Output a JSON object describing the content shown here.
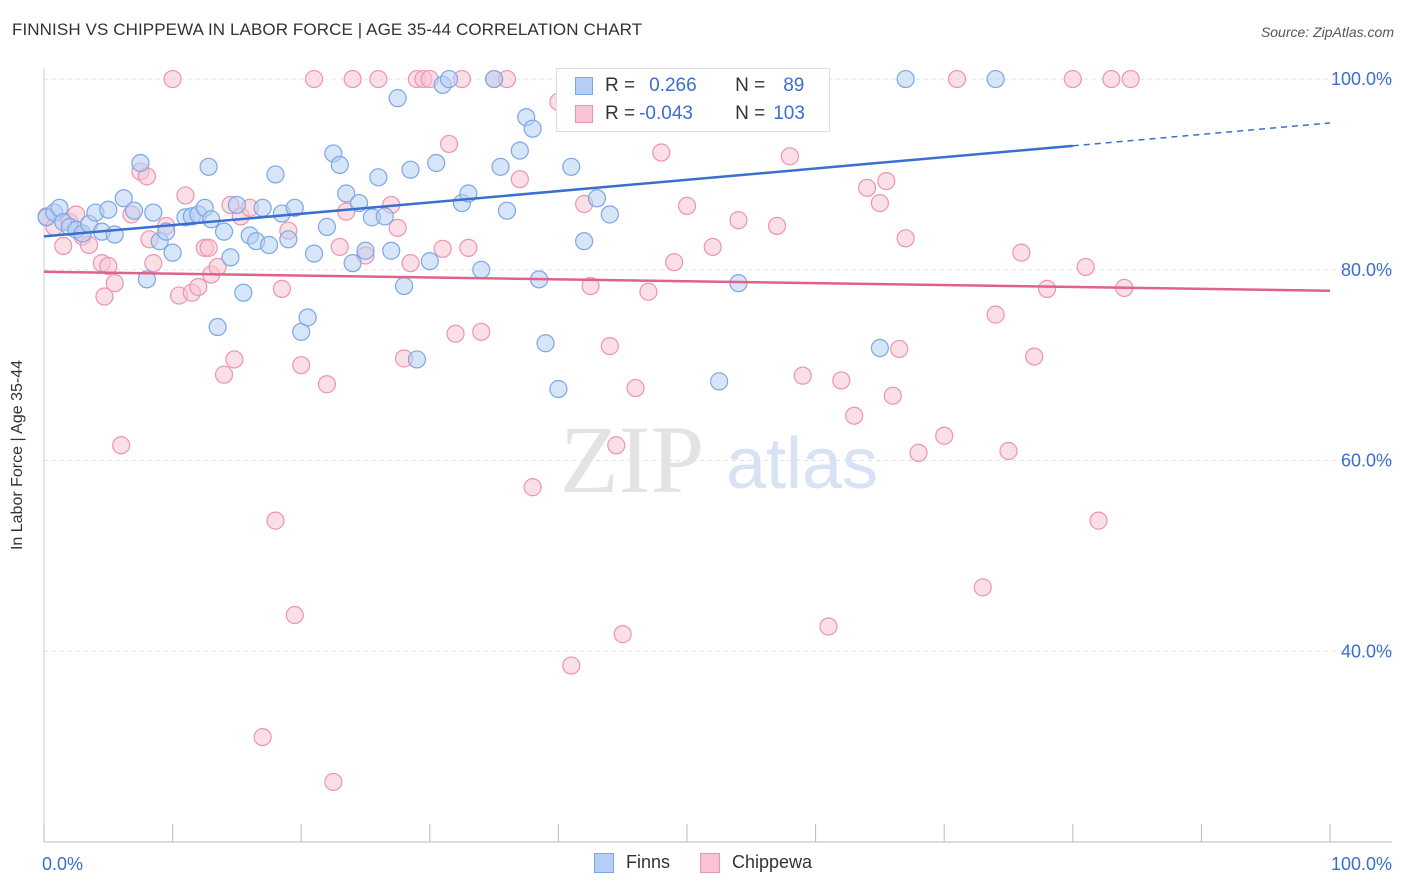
{
  "header": {
    "title": "FINNISH VS CHIPPEWA IN LABOR FORCE | AGE 35-44 CORRELATION CHART",
    "source": "Source: ZipAtlas.com"
  },
  "watermark": {
    "zip": "ZIP",
    "atlas": "atlas"
  },
  "legend": {
    "rows": [
      {
        "r_label": "R =",
        "r_value": "0.266",
        "n_label": "N =",
        "n_value": "89",
        "color": "#7ba7e6",
        "fill": "#b6cff4"
      },
      {
        "r_label": "R =",
        "r_value": "-0.043",
        "n_label": "N =",
        "n_value": "103",
        "color": "#ef93b0",
        "fill": "#f8c4d4"
      }
    ]
  },
  "bottom_legend": [
    "Finns",
    "Chippewa"
  ],
  "chart_data": {
    "type": "scatter",
    "xlabel": "",
    "ylabel": "In Labor Force | Age 35-44",
    "xlim": [
      0,
      100
    ],
    "ylim": [
      20,
      102
    ],
    "x_tick_labels": {
      "0": "0.0%",
      "100": "100.0%"
    },
    "y_tick_labels": {
      "100": "100.0%",
      "80": "80.0%",
      "60": "60.0%",
      "40": "40.0%"
    },
    "grid": true,
    "legend_position": "top-center",
    "series": [
      {
        "name": "Finns",
        "color": "#3a6fcf",
        "fill": "#b6cff4",
        "stroke": "#7ba7e6",
        "trend": {
          "x0": 0,
          "y0": 83.5,
          "x1": 80,
          "y1": 93.0,
          "dash_to": 100,
          "dash_y": 95.4
        },
        "points": [
          [
            0.2,
            85.5
          ],
          [
            0.8,
            86
          ],
          [
            1.2,
            86.5
          ],
          [
            1.5,
            85
          ],
          [
            2,
            84.5
          ],
          [
            2.5,
            84.2
          ],
          [
            3,
            83.8
          ],
          [
            3.5,
            84.8
          ],
          [
            4,
            86
          ],
          [
            4.5,
            84
          ],
          [
            5,
            86.3
          ],
          [
            5.5,
            83.7
          ],
          [
            6.2,
            87.5
          ],
          [
            7,
            86.2
          ],
          [
            7.5,
            91.2
          ],
          [
            8,
            79
          ],
          [
            8.5,
            86
          ],
          [
            9,
            83
          ],
          [
            9.5,
            84
          ],
          [
            10,
            81.8
          ],
          [
            11,
            85.5
          ],
          [
            11.5,
            85.6
          ],
          [
            12,
            85.8
          ],
          [
            12.5,
            86.5
          ],
          [
            12.8,
            90.8
          ],
          [
            13,
            85.3
          ],
          [
            13.5,
            74
          ],
          [
            14,
            84
          ],
          [
            14.5,
            81.3
          ],
          [
            15,
            86.8
          ],
          [
            15.5,
            77.6
          ],
          [
            16,
            83.6
          ],
          [
            16.5,
            83
          ],
          [
            17,
            86.5
          ],
          [
            17.5,
            82.6
          ],
          [
            18,
            90
          ],
          [
            18.5,
            85.9
          ],
          [
            19,
            83.2
          ],
          [
            19.5,
            86.5
          ],
          [
            20,
            73.5
          ],
          [
            20.5,
            75
          ],
          [
            21,
            81.7
          ],
          [
            22,
            84.5
          ],
          [
            22.5,
            92.2
          ],
          [
            23,
            91
          ],
          [
            23.5,
            88
          ],
          [
            24,
            80.7
          ],
          [
            24.5,
            87
          ],
          [
            25,
            82
          ],
          [
            25.5,
            85.5
          ],
          [
            26,
            89.7
          ],
          [
            26.5,
            85.6
          ],
          [
            27,
            82
          ],
          [
            27.5,
            98
          ],
          [
            28,
            78.3
          ],
          [
            28.5,
            90.5
          ],
          [
            29,
            70.6
          ],
          [
            30,
            80.9
          ],
          [
            30.5,
            91.2
          ],
          [
            31,
            99.4
          ],
          [
            31.5,
            100
          ],
          [
            32.5,
            87
          ],
          [
            33,
            88
          ],
          [
            34,
            80
          ],
          [
            35,
            100
          ],
          [
            35.5,
            90.8
          ],
          [
            36,
            86.2
          ],
          [
            37,
            92.5
          ],
          [
            37.5,
            96
          ],
          [
            38,
            94.8
          ],
          [
            38.5,
            79
          ],
          [
            39,
            72.3
          ],
          [
            40,
            67.5
          ],
          [
            40.5,
            100
          ],
          [
            41,
            90.8
          ],
          [
            42,
            83
          ],
          [
            43,
            87.5
          ],
          [
            44,
            85.8
          ],
          [
            44.5,
            100
          ],
          [
            46,
            100
          ],
          [
            50,
            100
          ],
          [
            52.5,
            68.3
          ],
          [
            53,
            100
          ],
          [
            54,
            78.6
          ],
          [
            57,
            100
          ],
          [
            59,
            100
          ],
          [
            65,
            71.8
          ],
          [
            67,
            100
          ],
          [
            74,
            100
          ]
        ]
      },
      {
        "name": "Chippewa",
        "color": "#e0628b",
        "fill": "#f8c4d4",
        "stroke": "#ef93b0",
        "trend": {
          "x0": 0,
          "y0": 79.8,
          "x1": 100,
          "y1": 77.8
        },
        "points": [
          [
            0.2,
            85.6
          ],
          [
            0.8,
            84.5
          ],
          [
            1.5,
            82.5
          ],
          [
            2,
            85
          ],
          [
            2.5,
            85.8
          ],
          [
            3,
            83.5
          ],
          [
            3.5,
            82.6
          ],
          [
            4.5,
            80.7
          ],
          [
            4.7,
            77.2
          ],
          [
            5,
            80.4
          ],
          [
            5.5,
            78.6
          ],
          [
            6,
            61.6
          ],
          [
            6.8,
            85.8
          ],
          [
            7.5,
            90.3
          ],
          [
            8,
            89.8
          ],
          [
            8.2,
            83.2
          ],
          [
            8.5,
            80.7
          ],
          [
            9.5,
            84.6
          ],
          [
            10,
            100
          ],
          [
            10.5,
            77.3
          ],
          [
            11,
            87.8
          ],
          [
            11.5,
            77.6
          ],
          [
            12,
            78.2
          ],
          [
            12.5,
            82.3
          ],
          [
            12.8,
            82.3
          ],
          [
            13,
            79.5
          ],
          [
            13.5,
            80.3
          ],
          [
            14,
            69
          ],
          [
            14.5,
            86.8
          ],
          [
            14.8,
            70.6
          ],
          [
            15.3,
            85.6
          ],
          [
            16,
            86.5
          ],
          [
            17,
            31
          ],
          [
            18,
            53.7
          ],
          [
            18.5,
            78
          ],
          [
            19,
            84.1
          ],
          [
            19.5,
            43.8
          ],
          [
            20,
            70
          ],
          [
            21,
            100
          ],
          [
            22,
            68
          ],
          [
            22.5,
            26.3
          ],
          [
            23,
            82.4
          ],
          [
            23.5,
            86.1
          ],
          [
            24,
            100
          ],
          [
            25,
            81.5
          ],
          [
            26,
            100
          ],
          [
            27,
            86.8
          ],
          [
            27.5,
            84.4
          ],
          [
            28,
            70.7
          ],
          [
            28.5,
            80.7
          ],
          [
            29,
            100
          ],
          [
            29.5,
            100
          ],
          [
            30,
            100
          ],
          [
            31,
            82.2
          ],
          [
            31.5,
            93.2
          ],
          [
            32,
            73.3
          ],
          [
            32.5,
            100
          ],
          [
            33,
            82.3
          ],
          [
            34,
            73.5
          ],
          [
            35,
            100
          ],
          [
            36,
            100
          ],
          [
            37,
            89.5
          ],
          [
            38,
            57.2
          ],
          [
            40,
            97.6
          ],
          [
            41,
            38.5
          ],
          [
            42,
            86.9
          ],
          [
            42.5,
            78.3
          ],
          [
            44,
            72
          ],
          [
            44.5,
            61.6
          ],
          [
            45,
            41.8
          ],
          [
            46,
            67.6
          ],
          [
            46.5,
            97.3
          ],
          [
            47,
            77.7
          ],
          [
            48,
            92.3
          ],
          [
            49,
            80.8
          ],
          [
            50,
            86.7
          ],
          [
            52,
            82.4
          ],
          [
            53,
            95.4
          ],
          [
            54,
            85.2
          ],
          [
            57,
            84.6
          ],
          [
            58,
            91.9
          ],
          [
            59,
            68.9
          ],
          [
            61,
            42.6
          ],
          [
            62,
            68.4
          ],
          [
            63,
            64.7
          ],
          [
            64,
            88.6
          ],
          [
            65,
            87
          ],
          [
            65.5,
            89.3
          ],
          [
            66,
            66.8
          ],
          [
            66.5,
            71.7
          ],
          [
            67,
            83.3
          ],
          [
            68,
            60.8
          ],
          [
            70,
            62.6
          ],
          [
            71,
            100
          ],
          [
            73,
            46.7
          ],
          [
            74,
            75.3
          ],
          [
            75,
            61
          ],
          [
            76,
            81.8
          ],
          [
            77,
            70.9
          ],
          [
            78,
            78
          ],
          [
            80,
            100
          ],
          [
            81,
            80.3
          ],
          [
            82,
            53.7
          ],
          [
            83,
            100
          ],
          [
            84,
            78.1
          ],
          [
            84.5,
            100
          ]
        ]
      }
    ]
  }
}
